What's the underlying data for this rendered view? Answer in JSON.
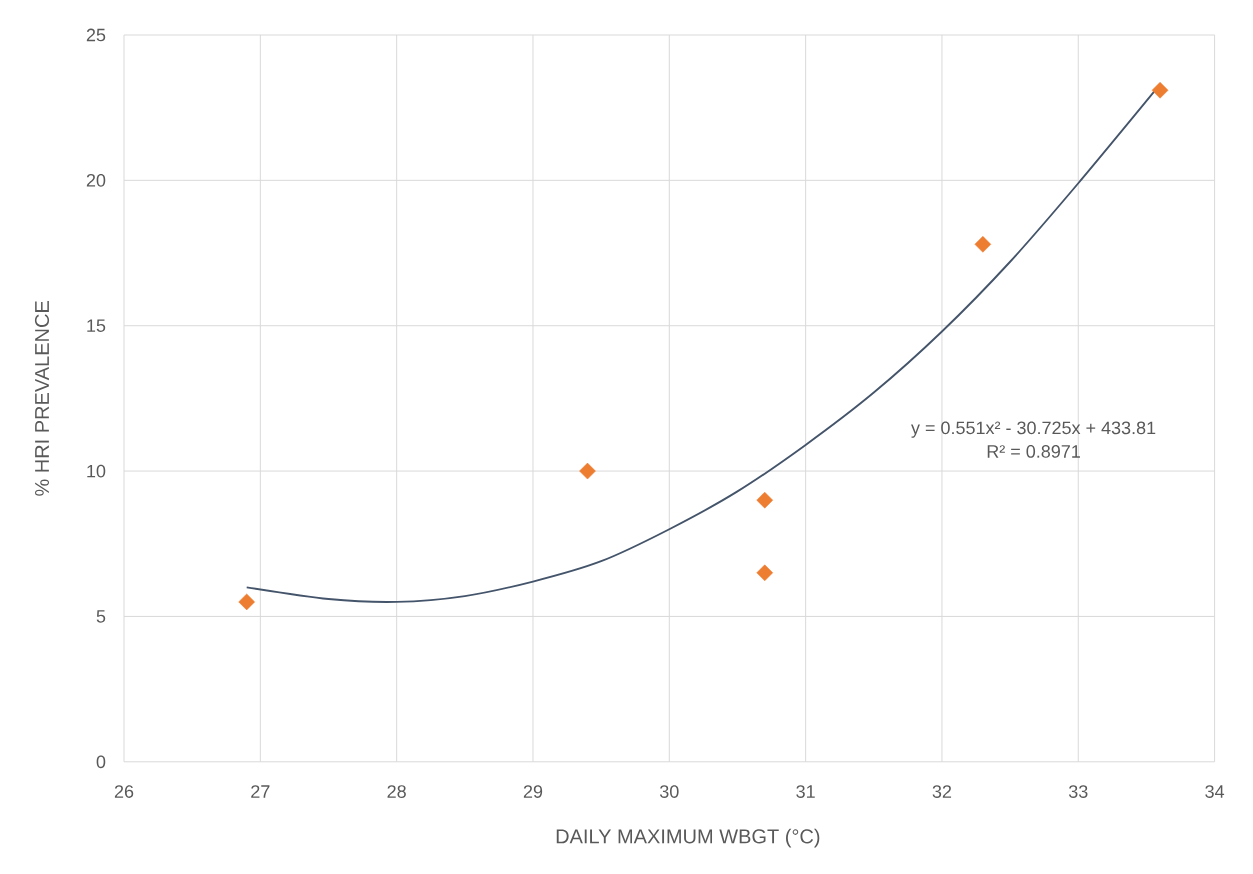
{
  "chart_data": {
    "type": "scatter",
    "xlabel": "DAILY MAXIMUM WBGT (°C)",
    "ylabel": "% HRI PREVALENCE",
    "annotations": [
      "y = 0.551x² - 30.725x + 433.81",
      "R² = 0.8971"
    ],
    "xlim": [
      26,
      34
    ],
    "ylim": [
      0,
      25
    ],
    "xticks": [
      26,
      27,
      28,
      29,
      30,
      31,
      32,
      33,
      34
    ],
    "yticks": [
      0,
      5,
      10,
      15,
      20,
      25
    ],
    "grid": true,
    "series": [
      {
        "color": "#ed7d31",
        "marker": "diamond",
        "x": [
          26.9,
          29.4,
          30.7,
          30.7,
          32.3,
          33.6
        ],
        "values": [
          5.5,
          10.0,
          9.0,
          6.5,
          17.8,
          23.1
        ]
      },
      {
        "type": "line",
        "color": "#44546a",
        "marker": "none",
        "x": [
          26.9,
          27.5,
          28,
          28.5,
          29,
          29.5,
          30,
          30.5,
          31,
          31.5,
          32,
          32.5,
          33,
          33.6
        ],
        "values": [
          6.0,
          5.6,
          5.5,
          5.7,
          6.2,
          6.9,
          8.0,
          9.3,
          10.9,
          12.7,
          14.8,
          17.2,
          19.9,
          23.3
        ]
      }
    ]
  }
}
